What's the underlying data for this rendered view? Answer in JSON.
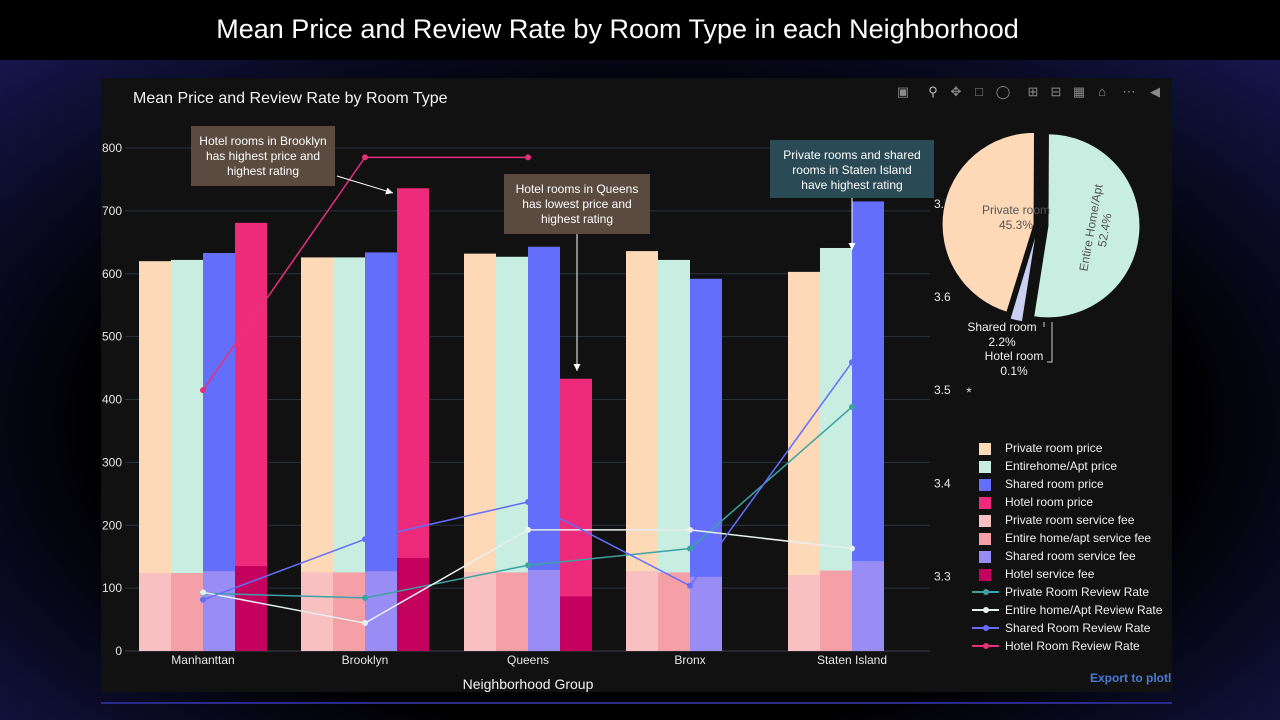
{
  "page": {
    "title": "Mean Price and Review Rate by Room Type in each Neighborhood"
  },
  "toolbar": {
    "icons": [
      "camera-icon",
      "zoom-icon",
      "pan-icon",
      "box-select-icon",
      "lasso-icon",
      "zoom-in-icon",
      "zoom-out-icon",
      "autoscale-icon",
      "reset-axes-icon",
      "spike-lines-icon",
      "hover-closest-icon"
    ],
    "export_label": "Export to plotl"
  },
  "colors": {
    "panel_bg": "#111111",
    "private_price": "#FED9B7",
    "entire_price": "#C8EDE1",
    "shared_price": "#636EFA",
    "hotel_price": "#EE2A7B",
    "private_fee": "#F8C0C0",
    "entire_fee": "#F59FA7",
    "shared_fee": "#9A8CF5",
    "hotel_fee": "#C4005E",
    "private_rate": "#3BA3A3",
    "entire_rate": "#E6F0EE",
    "shared_rate": "#636EFA",
    "hotel_rate": "#E8307A"
  },
  "chart_data": [
    {
      "type": "bar",
      "title": "Mean Price and Review Rate by Room Type",
      "xlabel": "Neighborhood Group",
      "ylabel": "",
      "ylim": [
        0,
        800
      ],
      "y_ticks": [
        0,
        100,
        200,
        300,
        400,
        500,
        600,
        700,
        800
      ],
      "y2lim": [
        3.22,
        3.76
      ],
      "y2_ticks": [
        3.3,
        3.4,
        3.5,
        3.6,
        3.7
      ],
      "y2_tick_labels": [
        "3.3",
        "3.4",
        "3.5",
        "3.6",
        "3.7"
      ],
      "categories": [
        "Manhanttan",
        "Brooklyn",
        "Queens",
        "Bronx",
        "Staten Island"
      ],
      "grid": true,
      "legend_position": "right",
      "price_series": [
        {
          "name": "Private room price",
          "color": "#FED9B7",
          "values": [
            620,
            626,
            632,
            636,
            603
          ]
        },
        {
          "name": "Entirehome/Apt price",
          "color": "#C8EDE1",
          "values": [
            622,
            626,
            627,
            622,
            641
          ]
        },
        {
          "name": "Shared room price",
          "color": "#636EFA",
          "values": [
            633,
            634,
            643,
            592,
            715
          ]
        },
        {
          "name": "Hotel room price",
          "color": "#EE2A7B",
          "values": [
            681,
            736,
            433,
            null,
            null
          ]
        }
      ],
      "fee_series": [
        {
          "name": "Private room service fee",
          "color": "#F8C0C0",
          "values": [
            124,
            125,
            126,
            127,
            121
          ]
        },
        {
          "name": "Entire home/apt service fee",
          "color": "#F59FA7",
          "values": [
            124,
            125,
            125,
            125,
            128
          ]
        },
        {
          "name": "Shared room service fee",
          "color": "#9A8CF5",
          "values": [
            127,
            127,
            129,
            118,
            143
          ]
        },
        {
          "name": "Hotel service fee",
          "color": "#C4005E",
          "values": [
            135,
            148,
            87,
            null,
            null
          ]
        }
      ],
      "rate_series": [
        {
          "name": "Private Room Review Rate",
          "color": "#3BA3A3",
          "values": [
            3.282,
            3.277,
            3.312,
            3.33,
            3.482
          ]
        },
        {
          "name": "Entire home/Apt Review Rate",
          "color": "#E6F0EE",
          "values": [
            3.283,
            3.25,
            3.35,
            3.35,
            3.33
          ]
        },
        {
          "name": "Shared Room Review Rate",
          "color": "#636EFA",
          "values": [
            3.275,
            3.34,
            3.38,
            3.29,
            3.53
          ]
        },
        {
          "name": "Hotel Room Review Rate",
          "color": "#E8307A",
          "values": [
            3.5,
            3.75,
            3.75,
            null,
            null
          ]
        }
      ],
      "annotations": [
        {
          "id": "brooklyn",
          "text": [
            "Hotel rooms in Brooklyn",
            "has highest price and",
            "highest rating"
          ]
        },
        {
          "id": "queens",
          "text": [
            "Hotel rooms in Queens",
            "has lowest price and",
            "highest rating"
          ]
        },
        {
          "id": "staten",
          "text": [
            "Private rooms and shared",
            "rooms in Staten Island",
            "have highest rating"
          ]
        }
      ]
    },
    {
      "type": "pie",
      "slices": [
        {
          "label": "Entire Home/Apt",
          "value": 52.4,
          "display": "52.4%",
          "color": "#C8EDE1"
        },
        {
          "label": "Shared room",
          "value": 2.2,
          "display": "2.2%",
          "color": "#C9CFF0"
        },
        {
          "label": "Hotel room",
          "value": 0.1,
          "display": "0.1%",
          "color": "#EE2A7B"
        },
        {
          "label": "Private room",
          "value": 45.3,
          "display": "45.3%",
          "color": "#FED9B7"
        }
      ]
    }
  ],
  "stray_mark": "*"
}
